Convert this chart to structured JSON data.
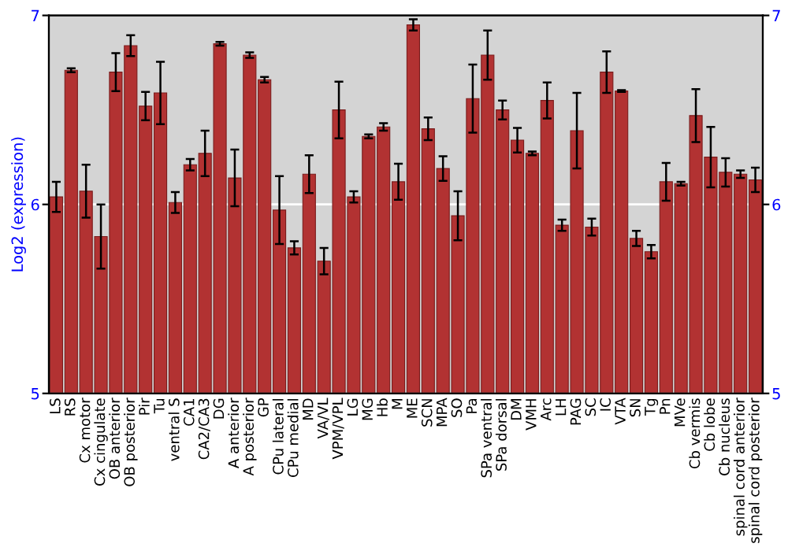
{
  "chart_data": {
    "type": "bar",
    "ylabel": "Log2 (expression)",
    "categories": [
      "LS",
      "RS",
      "Cx motor",
      "Cx cingulate",
      "OB anterior",
      "OB posterior",
      "Pir",
      "Tu",
      "ventral S",
      "CA1",
      "CA2/CA3",
      "DG",
      "A anterior",
      "A posterior",
      "GP",
      "CPu lateral",
      "CPu medial",
      "MD",
      "VA/VL",
      "VPM/VPL",
      "LG",
      "MG",
      "Hb",
      "M",
      "ME",
      "SCN",
      "MPA",
      "SO",
      "Pa",
      "SPa ventral",
      "SPa dorsal",
      "DM",
      "VMH",
      "Arc",
      "LH",
      "PAG",
      "SC",
      "IC",
      "VTA",
      "SN",
      "Tg",
      "Pn",
      "MVe",
      "Cb vermis",
      "Cb lobe",
      "Cb nucleus",
      "spinal cord anterior",
      "spinal cord posterior"
    ],
    "series": [
      {
        "color": "#b23232",
        "values": [
          6.04,
          6.71,
          6.07,
          5.83,
          6.7,
          6.84,
          6.52,
          6.59,
          6.01,
          6.21,
          6.27,
          6.85,
          6.14,
          6.79,
          6.66,
          5.97,
          5.77,
          6.16,
          5.7,
          6.5,
          6.04,
          6.36,
          6.41,
          6.12,
          6.95,
          6.4,
          6.19,
          5.94,
          6.56,
          6.79,
          6.5,
          6.34,
          6.27,
          6.55,
          5.89,
          6.39,
          5.88,
          6.7,
          6.6,
          5.82,
          5.75,
          6.12,
          6.11,
          6.47,
          6.25,
          6.17,
          6.16,
          6.13
        ],
        "errors": [
          0.08,
          0.01,
          0.14,
          0.17,
          0.1,
          0.055,
          0.075,
          0.165,
          0.055,
          0.03,
          0.12,
          0.01,
          0.15,
          0.015,
          0.015,
          0.18,
          0.035,
          0.1,
          0.07,
          0.15,
          0.03,
          0.01,
          0.02,
          0.095,
          0.03,
          0.06,
          0.065,
          0.13,
          0.18,
          0.13,
          0.05,
          0.065,
          0.01,
          0.095,
          0.03,
          0.2,
          0.045,
          0.11,
          0.005,
          0.04,
          0.035,
          0.1,
          0.01,
          0.14,
          0.16,
          0.075,
          0.02,
          0.065
        ]
      }
    ],
    "ylim": [
      5,
      7
    ],
    "yticks": [
      5,
      6,
      7
    ],
    "y2lim": [
      5,
      7
    ],
    "y2ticks": [
      5,
      6,
      7
    ],
    "grid": "y"
  }
}
